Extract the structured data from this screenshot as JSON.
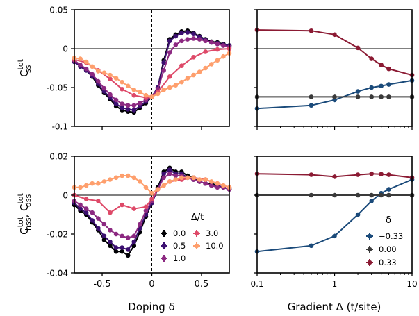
{
  "colors": {
    "U0": "#000004",
    "U0.5": "#3b0f70",
    "U1": "#8c2981",
    "U3": "#de4968",
    "U10": "#fe9f6d",
    "dneg": "#1a4a7a",
    "d0": "#3a3a3a",
    "dpos": "#8b1a33"
  },
  "chart_data": [
    {
      "id": "top-left",
      "type": "line",
      "ylabel_main": "C",
      "ylabel_sup": "tot",
      "ylabel_sub": "ss",
      "xlim": [
        -0.78,
        0.78
      ],
      "ylim": [
        -0.1,
        0.05
      ],
      "yticks": [
        0.05,
        0,
        -0.05,
        -0.1
      ],
      "ytick_labels": [
        "0.05",
        "0",
        "-0.05",
        "-0.1"
      ],
      "xticks": [
        -0.5,
        0,
        0.5
      ],
      "xtick_labels": [
        "",
        "",
        ""
      ],
      "hline": 0,
      "vline_dashed": 0,
      "series": [
        {
          "u": "0.0",
          "color_key": "U0",
          "x": [
            -0.78,
            -0.72,
            -0.66,
            -0.6,
            -0.54,
            -0.48,
            -0.42,
            -0.36,
            -0.3,
            -0.24,
            -0.18,
            -0.12,
            -0.06,
            0,
            0.06,
            0.12,
            0.18,
            0.24,
            0.3,
            0.36,
            0.42,
            0.48,
            0.54,
            0.6,
            0.66,
            0.72,
            0.78
          ],
          "y": [
            -0.016,
            -0.023,
            -0.028,
            -0.036,
            -0.047,
            -0.057,
            -0.065,
            -0.074,
            -0.079,
            -0.081,
            -0.082,
            -0.076,
            -0.07,
            -0.062,
            -0.05,
            -0.015,
            0.012,
            0.018,
            0.022,
            0.023,
            0.02,
            0.016,
            0.012,
            0.009,
            0.008,
            0.006,
            0.004
          ]
        },
        {
          "u": "0.5",
          "color_key": "U0.5",
          "x": [
            -0.78,
            -0.72,
            -0.66,
            -0.6,
            -0.54,
            -0.48,
            -0.42,
            -0.36,
            -0.3,
            -0.24,
            -0.18,
            -0.12,
            -0.06,
            0,
            0.06,
            0.12,
            0.18,
            0.24,
            0.3,
            0.36,
            0.42,
            0.48,
            0.54,
            0.6,
            0.66,
            0.72,
            0.78
          ],
          "y": [
            -0.017,
            -0.023,
            -0.028,
            -0.035,
            -0.045,
            -0.055,
            -0.063,
            -0.071,
            -0.076,
            -0.078,
            -0.079,
            -0.074,
            -0.068,
            -0.062,
            -0.05,
            -0.018,
            0.01,
            0.016,
            0.02,
            0.021,
            0.019,
            0.015,
            0.011,
            0.008,
            0.007,
            0.005,
            0.004
          ]
        },
        {
          "u": "1.0",
          "color_key": "U1",
          "x": [
            -0.78,
            -0.72,
            -0.66,
            -0.6,
            -0.54,
            -0.48,
            -0.42,
            -0.36,
            -0.3,
            -0.24,
            -0.18,
            -0.12,
            -0.06,
            0,
            0.06,
            0.12,
            0.18,
            0.24,
            0.3,
            0.36,
            0.42,
            0.48,
            0.54,
            0.6,
            0.66,
            0.72,
            0.78
          ],
          "y": [
            -0.015,
            -0.021,
            -0.026,
            -0.033,
            -0.042,
            -0.051,
            -0.059,
            -0.066,
            -0.071,
            -0.073,
            -0.073,
            -0.07,
            -0.066,
            -0.062,
            -0.052,
            -0.028,
            -0.005,
            0.005,
            0.01,
            0.012,
            0.013,
            0.012,
            0.01,
            0.008,
            0.006,
            0.004,
            0.002
          ]
        },
        {
          "u": "3.0",
          "color_key": "U3",
          "x": [
            -0.78,
            -0.66,
            -0.54,
            -0.42,
            -0.3,
            -0.18,
            -0.06,
            0,
            0.06,
            0.18,
            0.3,
            0.42,
            0.54,
            0.66,
            0.78
          ],
          "y": [
            -0.014,
            -0.018,
            -0.028,
            -0.039,
            -0.052,
            -0.06,
            -0.063,
            -0.062,
            -0.056,
            -0.036,
            -0.022,
            -0.011,
            -0.004,
            -0.001,
            0.0
          ]
        },
        {
          "u": "10.0",
          "color_key": "U10",
          "x": [
            -0.78,
            -0.72,
            -0.66,
            -0.6,
            -0.54,
            -0.48,
            -0.42,
            -0.36,
            -0.3,
            -0.24,
            -0.18,
            -0.12,
            -0.06,
            0,
            0.06,
            0.12,
            0.18,
            0.24,
            0.3,
            0.36,
            0.42,
            0.48,
            0.54,
            0.6,
            0.66,
            0.72,
            0.78
          ],
          "y": [
            -0.012,
            -0.013,
            -0.017,
            -0.023,
            -0.029,
            -0.031,
            -0.034,
            -0.038,
            -0.043,
            -0.048,
            -0.053,
            -0.056,
            -0.06,
            -0.062,
            -0.058,
            -0.053,
            -0.05,
            -0.047,
            -0.043,
            -0.038,
            -0.034,
            -0.03,
            -0.025,
            -0.02,
            -0.015,
            -0.01,
            -0.006
          ]
        }
      ]
    },
    {
      "id": "top-right",
      "type": "line",
      "xscale": "log",
      "xlim": [
        0.1,
        10
      ],
      "ylim": [
        -0.1,
        0.05
      ],
      "xticks": [
        0.1,
        1,
        10
      ],
      "xtick_labels": [
        "",
        "",
        ""
      ],
      "yticks": [
        0.05,
        0,
        -0.05,
        -0.1
      ],
      "ytick_labels": [
        "",
        "",
        "",
        ""
      ],
      "hline": 0,
      "series": [
        {
          "delta": "-0.33",
          "color_key": "dneg",
          "x": [
            0.1,
            0.5,
            1,
            2,
            3,
            4,
            5,
            10
          ],
          "y": [
            -0.077,
            -0.073,
            -0.066,
            -0.055,
            -0.05,
            -0.048,
            -0.046,
            -0.041
          ]
        },
        {
          "delta": "0.00",
          "color_key": "d0",
          "x": [
            0.1,
            0.5,
            1,
            2,
            3,
            4,
            5,
            10
          ],
          "y": [
            -0.062,
            -0.062,
            -0.062,
            -0.062,
            -0.062,
            -0.062,
            -0.062,
            -0.062
          ]
        },
        {
          "delta": "0.33",
          "color_key": "dpos",
          "x": [
            0.1,
            0.5,
            1,
            2,
            3,
            4,
            5,
            10
          ],
          "y": [
            0.024,
            0.023,
            0.018,
            0.001,
            -0.013,
            -0.021,
            -0.026,
            -0.034
          ]
        }
      ]
    },
    {
      "id": "bottom-left",
      "type": "line",
      "ylabel_main": "C",
      "ylabel_sup": "tot",
      "ylabel_sub": "hss",
      "ylabel_main2": "C",
      "ylabel_sup2": "tot",
      "ylabel_sub2": "dss",
      "xlabel": "Doping δ",
      "xlim": [
        -0.78,
        0.78
      ],
      "ylim": [
        -0.04,
        0.02
      ],
      "yticks": [
        0.02,
        0,
        -0.02,
        -0.04
      ],
      "ytick_labels": [
        "0.02",
        "0",
        "-0.02",
        "-0.04"
      ],
      "xticks": [
        -0.5,
        0,
        0.5
      ],
      "xtick_labels": [
        "-0.5",
        "0",
        "0.5"
      ],
      "hline": 0,
      "vline_dashed": 0,
      "legend_title": "Δ/t",
      "series": [
        {
          "u": "0.0",
          "color_key": "U0",
          "x": [
            -0.78,
            -0.72,
            -0.66,
            -0.6,
            -0.54,
            -0.48,
            -0.42,
            -0.36,
            -0.3,
            -0.24,
            -0.18,
            -0.12,
            -0.06,
            0,
            0.06,
            0.12,
            0.18,
            0.24,
            0.3,
            0.36,
            0.42,
            0.48,
            0.54,
            0.6,
            0.66,
            0.72,
            0.78
          ],
          "y": [
            -0.005,
            -0.008,
            -0.01,
            -0.014,
            -0.018,
            -0.023,
            -0.026,
            -0.029,
            -0.029,
            -0.031,
            -0.026,
            -0.019,
            -0.011,
            -0.004,
            0.004,
            0.012,
            0.014,
            0.012,
            0.012,
            0.01,
            0.009,
            0.007,
            0.006,
            0.006,
            0.005,
            0.004,
            0.003
          ]
        },
        {
          "u": "0.5",
          "color_key": "U0.5",
          "x": [
            -0.78,
            -0.72,
            -0.66,
            -0.6,
            -0.54,
            -0.48,
            -0.42,
            -0.36,
            -0.3,
            -0.24,
            -0.18,
            -0.12,
            -0.06,
            0,
            0.06,
            0.12,
            0.18,
            0.24,
            0.3,
            0.36,
            0.42,
            0.48,
            0.54,
            0.6,
            0.66,
            0.72,
            0.78
          ],
          "y": [
            -0.004,
            -0.007,
            -0.009,
            -0.013,
            -0.017,
            -0.021,
            -0.024,
            -0.027,
            -0.027,
            -0.028,
            -0.024,
            -0.017,
            -0.01,
            -0.004,
            0.003,
            0.011,
            0.013,
            0.011,
            0.011,
            0.009,
            0.008,
            0.007,
            0.006,
            0.005,
            0.005,
            0.004,
            0.003
          ]
        },
        {
          "u": "1.0",
          "color_key": "U1",
          "x": [
            -0.78,
            -0.72,
            -0.66,
            -0.6,
            -0.54,
            -0.48,
            -0.42,
            -0.36,
            -0.3,
            -0.24,
            -0.18,
            -0.12,
            -0.06,
            0,
            0.06,
            0.12,
            0.18,
            0.24,
            0.3,
            0.36,
            0.42,
            0.48,
            0.54,
            0.6,
            0.66,
            0.72,
            0.78
          ],
          "y": [
            -0.003,
            -0.005,
            -0.007,
            -0.009,
            -0.012,
            -0.015,
            -0.018,
            -0.02,
            -0.021,
            -0.022,
            -0.021,
            -0.015,
            -0.008,
            -0.003,
            0.003,
            0.009,
            0.011,
            0.01,
            0.01,
            0.009,
            0.008,
            0.007,
            0.006,
            0.005,
            0.004,
            0.004,
            0.003
          ]
        },
        {
          "u": "3.0",
          "color_key": "U3",
          "x": [
            -0.78,
            -0.66,
            -0.54,
            -0.42,
            -0.3,
            -0.18,
            -0.06,
            0,
            0.06,
            0.18,
            0.3,
            0.42,
            0.54,
            0.66,
            0.78
          ],
          "y": [
            0.0,
            -0.002,
            -0.003,
            -0.009,
            -0.005,
            -0.007,
            -0.006,
            -0.002,
            0.003,
            0.007,
            0.008,
            0.009,
            0.008,
            0.006,
            0.004
          ]
        },
        {
          "u": "10.0",
          "color_key": "U10",
          "x": [
            -0.78,
            -0.72,
            -0.66,
            -0.6,
            -0.54,
            -0.48,
            -0.42,
            -0.36,
            -0.3,
            -0.24,
            -0.18,
            -0.12,
            -0.06,
            0,
            0.06,
            0.12,
            0.18,
            0.24,
            0.3,
            0.36,
            0.42,
            0.48,
            0.54,
            0.6,
            0.66,
            0.72,
            0.78
          ],
          "y": [
            0.004,
            0.004,
            0.005,
            0.006,
            0.006,
            0.007,
            0.008,
            0.009,
            0.01,
            0.01,
            0.009,
            0.007,
            0.004,
            0.001,
            0.003,
            0.005,
            0.007,
            0.008,
            0.009,
            0.009,
            0.009,
            0.008,
            0.008,
            0.007,
            0.006,
            0.005,
            0.004
          ]
        }
      ]
    },
    {
      "id": "bottom-right",
      "type": "line",
      "xscale": "log",
      "xlabel": "Gradient Δ (t/site)",
      "xlim": [
        0.1,
        10
      ],
      "ylim": [
        -0.04,
        0.02
      ],
      "xticks": [
        0.1,
        1,
        10
      ],
      "xtick_labels": [
        "0.1",
        "1",
        "10"
      ],
      "yticks": [
        0.02,
        0,
        -0.02,
        -0.04
      ],
      "ytick_labels": [
        "",
        "",
        "",
        ""
      ],
      "hline": 0,
      "legend_title": "δ",
      "series": [
        {
          "delta": "−0.33",
          "color_key": "dneg",
          "x": [
            0.1,
            0.5,
            1,
            2,
            3,
            4,
            5,
            10
          ],
          "y": [
            -0.029,
            -0.026,
            -0.021,
            -0.01,
            -0.003,
            0.001,
            0.003,
            0.008
          ]
        },
        {
          "delta": "0.00",
          "color_key": "d0",
          "x": [
            0.1,
            0.5,
            1,
            2,
            3,
            4,
            5,
            10
          ],
          "y": [
            0.0,
            0.0,
            0.0,
            0.0,
            0.0,
            0.0,
            0.0,
            0.0
          ]
        },
        {
          "delta": "0.33",
          "color_key": "dpos",
          "x": [
            0.1,
            0.5,
            1,
            2,
            3,
            4,
            5,
            10
          ],
          "y": [
            0.011,
            0.0105,
            0.0095,
            0.0105,
            0.011,
            0.0108,
            0.0105,
            0.009
          ]
        }
      ]
    }
  ]
}
